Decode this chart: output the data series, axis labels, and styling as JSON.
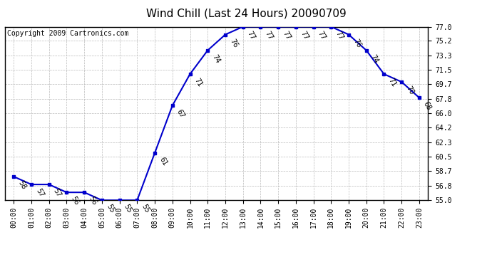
{
  "title": "Wind Chill (Last 24 Hours) 20090709",
  "copyright": "Copyright 2009 Cartronics.com",
  "hours": [
    0,
    1,
    2,
    3,
    4,
    5,
    6,
    7,
    8,
    9,
    10,
    11,
    12,
    13,
    14,
    15,
    16,
    17,
    18,
    19,
    20,
    21,
    22,
    23
  ],
  "x_labels": [
    "00:00",
    "01:00",
    "02:00",
    "03:00",
    "04:00",
    "05:00",
    "06:00",
    "07:00",
    "08:00",
    "09:00",
    "10:00",
    "11:00",
    "12:00",
    "13:00",
    "14:00",
    "15:00",
    "16:00",
    "17:00",
    "18:00",
    "19:00",
    "20:00",
    "21:00",
    "22:00",
    "23:00"
  ],
  "values": [
    58,
    57,
    57,
    56,
    56,
    55,
    55,
    55,
    61,
    67,
    71,
    74,
    76,
    77,
    77,
    77,
    77,
    77,
    77,
    76,
    74,
    71,
    70,
    68
  ],
  "ylim": [
    55.0,
    77.0
  ],
  "yticks": [
    55.0,
    56.8,
    58.7,
    60.5,
    62.3,
    64.2,
    66.0,
    67.8,
    69.7,
    71.5,
    73.3,
    75.2,
    77.0
  ],
  "line_color": "#0000cc",
  "marker_color": "#0000cc",
  "bg_color": "#ffffff",
  "plot_bg_color": "#ffffff",
  "grid_color": "#bbbbbb",
  "title_fontsize": 11,
  "copyright_fontsize": 7,
  "tick_fontsize": 7,
  "annotation_fontsize": 7,
  "annotation_rotation": -60
}
